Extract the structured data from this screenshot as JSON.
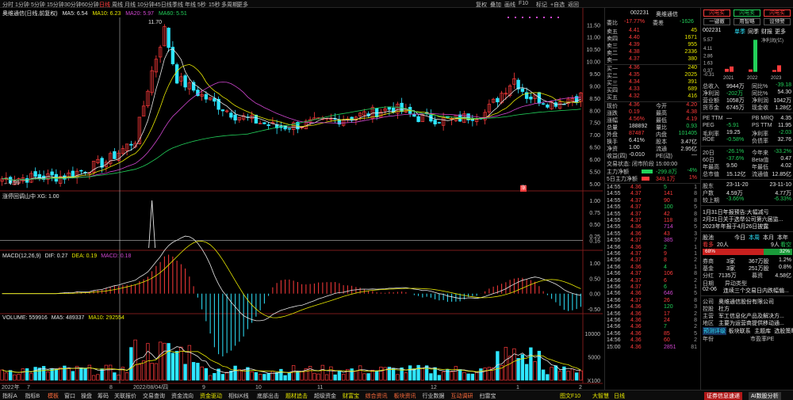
{
  "toolbar": {
    "periods": [
      "分时",
      "1分钟",
      "5分钟",
      "15分钟",
      "30分钟",
      "60分钟",
      "日线",
      "周线",
      "月线",
      "10分钟",
      "45日线",
      "季线",
      "年线",
      "5秒",
      "15秒",
      "多周期",
      "更多"
    ],
    "active_period": "日线",
    "right_tools": [
      "复权",
      "叠加",
      "画线",
      "F10",
      "标记",
      "+自选",
      "返回"
    ]
  },
  "main_chart": {
    "title": "奥维通信(日线,前复权)",
    "ma5": "MA5: 6.54",
    "ma10": "MA10: 6.23",
    "ma20": "MA20: 5.97",
    "ma60": "MA60: 5.51",
    "y_ticks": [
      "11.50",
      "11.00",
      "10.50",
      "10.00",
      "9.50",
      "9.00",
      "8.50",
      "8.00",
      "7.50",
      "7.00",
      "6.50",
      "6.00",
      "5.50",
      "5.00"
    ],
    "high_label": "11.70",
    "low_label": "4.99",
    "marker": "涨"
  },
  "sub_panel1": {
    "title": "涨停回调山中 XG: 1.00",
    "y_ticks": [
      "1.00",
      "0.75",
      "0.50",
      "0.25",
      "0.16"
    ]
  },
  "macd": {
    "title": "MACD(12,26,9)",
    "dif": "DIF: 0.27",
    "dea": "DEA: 0.19",
    "macd": "MACD: 0.18",
    "y_ticks": [
      "1.00",
      "0.50",
      "0.00",
      "-0.50"
    ]
  },
  "volume": {
    "title": "VOLUME: 559916",
    "ma5": "MA5: 489337",
    "ma10": "MA10: 292554",
    "y_ticks": [
      "10000",
      "5000",
      "X100"
    ]
  },
  "x_axis": [
    "2022年",
    "7",
    "8",
    "2022/08/04/四",
    "9",
    "10",
    "11",
    "12",
    "1",
    "2"
  ],
  "bottom_tabs": [
    "指标A",
    "指标B",
    "模板",
    "窗口",
    "操盘",
    "筹码",
    "关联报价",
    "交易查询",
    "资金流向",
    "资金驱动",
    "相似K线",
    "底部出击",
    "题材追击",
    "超级资金",
    "财富宝",
    "综合资讯",
    "板块资讯",
    "行业数据",
    "互动调研",
    "扫雷宝"
  ],
  "bottom_right": [
    "图文F10",
    "大智慧",
    "日线"
  ],
  "quote": {
    "code": "002231",
    "name": "奥维通信",
    "weibi_label": "委比",
    "weibi": "-17.77%",
    "weicha_label": "委差",
    "weicha": "-1626",
    "asks": [
      {
        "label": "卖五",
        "price": "4.41",
        "vol": "45"
      },
      {
        "label": "卖四",
        "price": "4.40",
        "vol": "1671"
      },
      {
        "label": "卖三",
        "price": "4.39",
        "vol": "955"
      },
      {
        "label": "卖二",
        "price": "4.38",
        "vol": "2336"
      },
      {
        "label": "卖一",
        "price": "4.37",
        "vol": "380"
      }
    ],
    "bids": [
      {
        "label": "买一",
        "price": "4.36",
        "vol": "240"
      },
      {
        "label": "买二",
        "price": "4.35",
        "vol": "2025"
      },
      {
        "label": "买三",
        "price": "4.34",
        "vol": "391"
      },
      {
        "label": "买四",
        "price": "4.33",
        "vol": "689"
      },
      {
        "label": "买五",
        "price": "4.32",
        "vol": "416"
      }
    ],
    "stats": [
      {
        "l1": "现价",
        "v1": "4.36",
        "l2": "今开",
        "v2": "4.20"
      },
      {
        "l1": "涨跌",
        "v1": "0.19",
        "l2": "最高",
        "v2": "4.38"
      },
      {
        "l1": "涨幅",
        "v1": "4.56%",
        "l2": "最低",
        "v2": "4.19"
      },
      {
        "l1": "总量",
        "v1": "188892",
        "l2": "量比",
        "v2": "0.93"
      },
      {
        "l1": "外盘",
        "v1": "87487",
        "l2": "内盘",
        "v2": "101405"
      },
      {
        "l1": "换手",
        "v1": "6.41%",
        "l2": "股本",
        "v2": "3.47亿"
      },
      {
        "l1": "净资",
        "v1": "1.00",
        "l2": "流通",
        "v2": "2.95亿"
      },
      {
        "l1": "收益(四)",
        "v1": "-0.010",
        "l2": "PE(动)",
        "v2": "—"
      }
    ],
    "trade_state": "交易状态: 闭市阶段 15:00:00",
    "main_net": {
      "label": "主力净额",
      "value": "-299.8万",
      "pct": "-4%"
    },
    "main_net5": {
      "label": "5日主力净额",
      "value": "349.1万",
      "pct": "1%"
    },
    "ticks": [
      {
        "t": "14:55",
        "p": "4.36",
        "v": "5",
        "n": "1"
      },
      {
        "t": "14:55",
        "p": "4.37",
        "v": "141",
        "n": "8"
      },
      {
        "t": "14:55",
        "p": "4.37",
        "v": "90",
        "n": "8"
      },
      {
        "t": "14:55",
        "p": "4.37",
        "v": "100",
        "n": "5"
      },
      {
        "t": "14:55",
        "p": "4.37",
        "v": "42",
        "n": "8"
      },
      {
        "t": "14:55",
        "p": "4.37",
        "v": "118",
        "n": "8"
      },
      {
        "t": "14:55",
        "p": "4.36",
        "v": "714",
        "n": "5"
      },
      {
        "t": "14:55",
        "p": "4.36",
        "v": "43",
        "n": "3"
      },
      {
        "t": "14:55",
        "p": "4.37",
        "v": "385",
        "n": "7"
      },
      {
        "t": "14:56",
        "p": "4.36",
        "v": "2",
        "n": "1"
      },
      {
        "t": "14:56",
        "p": "4.37",
        "v": "9",
        "n": "1"
      },
      {
        "t": "14:56",
        "p": "4.37",
        "v": "8",
        "n": "2"
      },
      {
        "t": "14:56",
        "p": "4.36",
        "v": "4",
        "n": "1"
      },
      {
        "t": "14:56",
        "p": "4.37",
        "v": "106",
        "n": "8"
      },
      {
        "t": "14:56",
        "p": "4.37",
        "v": "6",
        "n": "2"
      },
      {
        "t": "14:56",
        "p": "4.37",
        "v": "6",
        "n": "1"
      },
      {
        "t": "14:56",
        "p": "4.36",
        "v": "646",
        "n": "5"
      },
      {
        "t": "14:56",
        "p": "4.37",
        "v": "26",
        "n": "8"
      },
      {
        "t": "14:56",
        "p": "4.36",
        "v": "120",
        "n": "3"
      },
      {
        "t": "14:56",
        "p": "4.36",
        "v": "17",
        "n": "2"
      },
      {
        "t": "14:56",
        "p": "4.36",
        "v": "24",
        "n": "8"
      },
      {
        "t": "14:56",
        "p": "4.36",
        "v": "7",
        "n": "2"
      },
      {
        "t": "14:56",
        "p": "4.36",
        "v": "85",
        "n": "5"
      },
      {
        "t": "14:56",
        "p": "4.36",
        "v": "60",
        "n": "2"
      },
      {
        "t": "15:00",
        "p": "4.36",
        "v": "2851",
        "n": "81"
      }
    ]
  },
  "info": {
    "top_buttons": [
      "闪电买",
      "闪电卖",
      "闪电买"
    ],
    "top_buttons2": [
      "一键撤",
      "用智略",
      "设预警"
    ],
    "code": "002231",
    "tabs": [
      "单季",
      "同季",
      "财报",
      "更多"
    ],
    "fin_ticks": [
      "5.57",
      "4.11",
      "2.86",
      "1.63",
      "0.37",
      "-0.31"
    ],
    "fin_unit": "净利润(亿)",
    "fin_years": [
      "2021",
      "2022",
      "2023"
    ],
    "rows1": [
      {
        "l": "总收入",
        "v": "9944万",
        "l2": "同比%",
        "v2": "-39.18"
      },
      {
        "l": "净利润",
        "v": "-202万",
        "l2": "同比%",
        "v2": "54.30"
      },
      {
        "l": "营业额",
        "v": "1058万",
        "l2": "净利润",
        "v2": "1042万"
      },
      {
        "l": "货币金",
        "v": "6745万",
        "l2": "现金收",
        "v2": "1.28亿"
      }
    ],
    "rows2": [
      {
        "l": "PE TTM",
        "v": "—",
        "l2": "PB MRQ",
        "v2": "4.35"
      },
      {
        "l": "PEG",
        "v": "-5.91",
        "l2": "PS TTM",
        "v2": "11.95"
      },
      {
        "l": "毛利率",
        "v": "19.25",
        "l2": "净利率",
        "v2": "-2.03"
      },
      {
        "l": "ROE",
        "v": "-0.58%",
        "l2": "负债率",
        "v2": "32.76"
      }
    ],
    "rows3": [
      {
        "l": "20日",
        "v": "-26.1%",
        "l2": "今年来",
        "v2": "-33.2%"
      },
      {
        "l": "60日",
        "v": "-37.6%",
        "l2": "Beta值",
        "v2": "0.47"
      },
      {
        "l": "年最高",
        "v": "9.50",
        "l2": "年最低",
        "v2": "4.02"
      },
      {
        "l": "总市值",
        "v": "15.12亿",
        "l2": "流通值",
        "v2": "12.85亿"
      }
    ],
    "rows4": [
      {
        "l": "股东",
        "v": "23-11-20",
        "v2": "23-11-10"
      },
      {
        "l": "户数",
        "v": "4.59万",
        "v2": "4.77万"
      },
      {
        "l": "较上期",
        "v": "-3.66%",
        "v2": "-6.33%"
      }
    ],
    "news": [
      "1月31日年报预告:大幅减亏",
      "2月21日关于选举公司第六届监...",
      "2023年年报于4月26日披露"
    ],
    "fund_tabs": [
      "股池",
      "今日",
      "本周",
      "本月",
      "本年"
    ],
    "fund_label_up": "看多",
    "fund_up": "20人",
    "fund_down": "9人",
    "fund_down_label": "看空",
    "fund_up_pct": "68%",
    "fund_down_pct": "32%",
    "holders": [
      {
        "l": "券商",
        "v": "3家",
        "v2": "367万股",
        "v3": "1.2%"
      },
      {
        "l": "基金",
        "v": "3家",
        "v2": "251万股",
        "v3": "0.8%"
      }
    ],
    "holders_more": "更多",
    "inflow": {
      "l": "分红",
      "v": "7135万",
      "l2": "募资",
      "v2": "4.58亿"
    },
    "events_title": "日期",
    "events_type": "异动类型",
    "events": [
      {
        "d": "02-06",
        "t": "连续三个交易日内跌幅偏..."
      }
    ],
    "company": [
      {
        "l": "公司",
        "v": "奥维通信股份有限公司"
      },
      {
        "l": "控股",
        "v": "杜方"
      },
      {
        "l": "主营",
        "v": "军工信息化产品及解决方..."
      },
      {
        "l": "地区",
        "v": "主要为运营商提供移动通..."
      }
    ],
    "tags": [
      "预测评级",
      "板块联系",
      "主题库",
      "选股策略"
    ],
    "bottom_year": "年份",
    "bottom_pe": "市盈率PE",
    "bottom_buttons": [
      "证券信息速递",
      "AI数股分析"
    ]
  },
  "colors": {
    "up": "#ff3b3b",
    "down": "#2ee6ff",
    "ma5": "#e6e6e6",
    "ma10": "#e8e800",
    "ma20": "#d046d0",
    "ma60": "#22d05a"
  }
}
